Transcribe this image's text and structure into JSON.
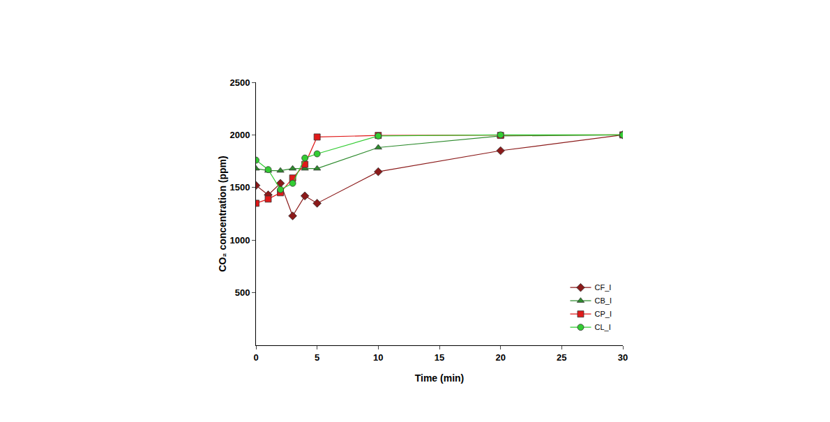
{
  "chart_data": {
    "type": "line",
    "x_label": "Time (min)",
    "y_label": "CO₂ concentration (ppm)",
    "x": [
      0,
      1,
      2,
      3,
      4,
      5,
      10,
      20,
      30
    ],
    "series": [
      {
        "name": "CF_I",
        "color": "#8b1a1a",
        "marker": "diamond",
        "line_style": "solid",
        "values": [
          1520,
          1430,
          1540,
          1230,
          1420,
          1350,
          1650,
          1850,
          2000
        ]
      },
      {
        "name": "CB_I",
        "color": "#2e8b2e",
        "marker": "triangle-up",
        "line_style": "solid",
        "values": [
          1680,
          1660,
          1660,
          1680,
          1680,
          1680,
          1880,
          1990,
          2000
        ]
      },
      {
        "name": "CP_I",
        "color": "#e01a1a",
        "marker": "square",
        "line_style": "solid",
        "values": [
          1350,
          1390,
          1450,
          1590,
          1720,
          1980,
          1995,
          1995,
          2000
        ]
      },
      {
        "name": "CL_I",
        "color": "#33cc33",
        "marker": "circle",
        "line_style": "solid",
        "values": [
          1760,
          1670,
          1480,
          1540,
          1780,
          1820,
          1990,
          2000,
          2000
        ]
      }
    ],
    "xlim": [
      0,
      30
    ],
    "xticks": [
      0,
      5,
      10,
      15,
      20,
      25,
      30
    ],
    "ylim": [
      0,
      2500
    ],
    "yticks": [
      500,
      1000,
      1500,
      2000,
      2500
    ],
    "grid": false,
    "legend": "bottom right"
  }
}
